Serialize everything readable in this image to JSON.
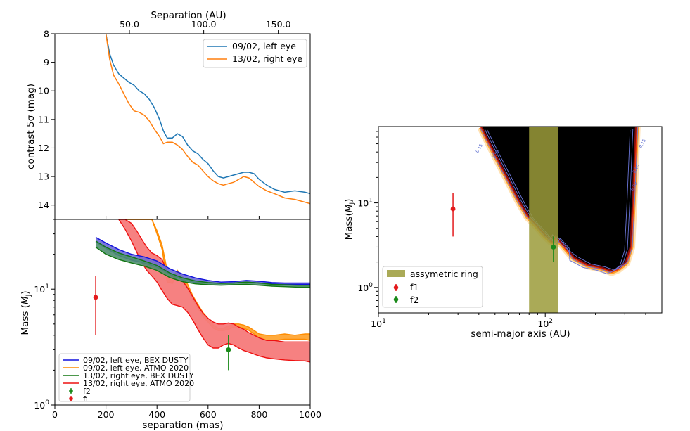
{
  "chart_data": [
    {
      "id": "contrast",
      "type": "line",
      "title": "",
      "xlabel_top": "Separation (AU)",
      "top_ticks": [
        "50.0",
        "100.0",
        "150.0"
      ],
      "top_tick_values_mas": [
        292,
        583,
        875
      ],
      "ylabel": "contrast 5σ (mag)",
      "xlim": [
        0,
        1000
      ],
      "ylim": [
        14.5,
        8.0
      ],
      "yticks": [
        "8",
        "9",
        "10",
        "11",
        "12",
        "13",
        "14"
      ],
      "ytick_values": [
        8,
        9,
        10,
        11,
        12,
        13,
        14
      ],
      "series": [
        {
          "name": "09/02, left eye",
          "color": "#1f77b4",
          "x": [
            200,
            215,
            230,
            250,
            270,
            290,
            310,
            330,
            350,
            370,
            390,
            410,
            425,
            440,
            460,
            480,
            500,
            520,
            540,
            560,
            580,
            600,
            620,
            640,
            660,
            680,
            700,
            720,
            740,
            760,
            780,
            800,
            830,
            860,
            900,
            940,
            980,
            1000
          ],
          "y": [
            8.0,
            8.7,
            9.1,
            9.4,
            9.55,
            9.7,
            9.8,
            10.0,
            10.1,
            10.3,
            10.6,
            11.0,
            11.4,
            11.65,
            11.65,
            11.5,
            11.6,
            11.9,
            12.1,
            12.2,
            12.4,
            12.55,
            12.8,
            13.0,
            13.05,
            13.0,
            12.95,
            12.9,
            12.85,
            12.85,
            12.9,
            13.1,
            13.3,
            13.45,
            13.55,
            13.5,
            13.55,
            13.6
          ]
        },
        {
          "name": "13/02, right eye",
          "color": "#ff7f0e",
          "x": [
            200,
            215,
            230,
            250,
            270,
            290,
            310,
            330,
            350,
            370,
            390,
            410,
            425,
            440,
            460,
            480,
            500,
            520,
            540,
            560,
            580,
            600,
            620,
            640,
            660,
            680,
            700,
            720,
            740,
            760,
            780,
            800,
            830,
            860,
            900,
            940,
            980,
            1000
          ],
          "y": [
            8.0,
            8.9,
            9.45,
            9.75,
            10.1,
            10.45,
            10.7,
            10.75,
            10.85,
            11.05,
            11.35,
            11.6,
            11.85,
            11.8,
            11.8,
            11.9,
            12.05,
            12.3,
            12.5,
            12.6,
            12.8,
            13.0,
            13.15,
            13.25,
            13.3,
            13.25,
            13.2,
            13.1,
            13.0,
            13.05,
            13.2,
            13.35,
            13.5,
            13.6,
            13.75,
            13.8,
            13.9,
            13.95
          ]
        }
      ],
      "legend_position": "upper right"
    },
    {
      "id": "mass-limits",
      "type": "area",
      "xlabel": "separation (mas)",
      "ylabel": "Mass (M_J)",
      "xlim": [
        0,
        1000
      ],
      "ylim": [
        1,
        40
      ],
      "yscale": "log",
      "xticks": [
        "0",
        "200",
        "400",
        "600",
        "800",
        "1000"
      ],
      "xtick_values": [
        0,
        200,
        400,
        600,
        800,
        1000
      ],
      "yticks": [
        "10^0",
        "10^1"
      ],
      "ytick_values": [
        1,
        10
      ],
      "bands": [
        {
          "name": "09/02, left eye, ATMO 2020",
          "edge_color": "#ff8c00",
          "fill_color": "#ffa533",
          "x": [
            275,
            300,
            320,
            340,
            360,
            380,
            400,
            420,
            440,
            460,
            480,
            500,
            520,
            540,
            560,
            580,
            600,
            620,
            640,
            660,
            680,
            700,
            720,
            740,
            760,
            780,
            800,
            830,
            860,
            900,
            940,
            980,
            1000
          ],
          "upper": [
            40,
            40,
            40,
            40,
            40,
            40,
            32,
            24,
            14.5,
            12.5,
            14.5,
            12.8,
            11.0,
            8.8,
            7.4,
            6.3,
            5.6,
            4.9,
            4.6,
            4.6,
            4.8,
            5.0,
            5.0,
            4.9,
            4.7,
            4.4,
            4.1,
            4.0,
            4.0,
            4.1,
            4.0,
            4.1,
            4.1
          ],
          "lower": [
            40,
            40,
            40,
            40,
            40,
            40,
            30,
            22,
            11.5,
            11.2,
            13.5,
            12.0,
            10.0,
            8.2,
            6.9,
            5.8,
            5.2,
            4.6,
            4.4,
            4.4,
            4.5,
            4.7,
            4.7,
            4.6,
            4.4,
            4.1,
            3.8,
            3.6,
            3.6,
            3.7,
            3.7,
            3.7,
            3.6
          ]
        },
        {
          "name": "13/02, right eye, ATMO 2020",
          "edge_color": "#ee1111",
          "fill_color": "#f57a7a",
          "x": [
            250,
            275,
            300,
            320,
            340,
            360,
            380,
            400,
            420,
            440,
            460,
            480,
            500,
            520,
            540,
            560,
            580,
            600,
            620,
            640,
            660,
            680,
            700,
            720,
            740,
            760,
            780,
            800,
            830,
            860,
            900,
            940,
            980,
            1000
          ],
          "upper": [
            40,
            40,
            37,
            32,
            27,
            23,
            20.5,
            19.5,
            18.0,
            14.0,
            13.0,
            12.0,
            11.8,
            10.2,
            8.6,
            7.2,
            6.2,
            5.6,
            5.2,
            5.0,
            5.0,
            5.1,
            5.0,
            4.7,
            4.5,
            4.2,
            4.0,
            3.8,
            3.6,
            3.6,
            3.5,
            3.5,
            3.5,
            3.5
          ],
          "lower": [
            40,
            33,
            26,
            21,
            17,
            14.5,
            13.0,
            11.5,
            9.7,
            8.3,
            7.4,
            7.2,
            7.0,
            6.3,
            5.4,
            4.5,
            3.8,
            3.3,
            3.1,
            3.1,
            3.3,
            3.4,
            3.3,
            3.1,
            2.95,
            2.85,
            2.75,
            2.65,
            2.55,
            2.5,
            2.45,
            2.42,
            2.4,
            2.35
          ]
        },
        {
          "name": "09/02, left eye, BEX DUSTY",
          "edge_color": "#1111dd",
          "fill_color": "#6b6bd6",
          "x": [
            160,
            200,
            250,
            300,
            350,
            400,
            450,
            500,
            550,
            600,
            650,
            700,
            750,
            800,
            850,
            900,
            950,
            1000
          ],
          "upper": [
            28.0,
            25.0,
            22.0,
            20.0,
            19.0,
            17.5,
            15.0,
            13.5,
            12.5,
            11.9,
            11.5,
            11.6,
            11.9,
            11.7,
            11.4,
            11.3,
            11.3,
            11.3
          ],
          "lower": [
            25.5,
            22.5,
            19.5,
            17.8,
            16.8,
            15.5,
            13.5,
            12.0,
            11.4,
            11.3,
            11.2,
            11.3,
            11.5,
            11.3,
            11.1,
            11.0,
            11.0,
            11.0
          ]
        },
        {
          "name": "13/02, right eye, BEX DUSTY",
          "edge_color": "#117711",
          "fill_color": "#4f8f6f",
          "x": [
            160,
            200,
            250,
            300,
            350,
            400,
            450,
            500,
            550,
            600,
            650,
            700,
            750,
            800,
            850,
            900,
            950,
            1000
          ],
          "upper": [
            26.0,
            23.0,
            20.5,
            19.0,
            17.5,
            16.0,
            13.8,
            12.5,
            11.8,
            11.4,
            11.2,
            11.3,
            11.5,
            11.3,
            11.0,
            10.9,
            10.8,
            10.8
          ],
          "lower": [
            23.0,
            20.0,
            18.0,
            16.8,
            15.8,
            14.5,
            12.6,
            11.6,
            11.1,
            10.9,
            10.8,
            10.9,
            11.0,
            10.8,
            10.6,
            10.5,
            10.4,
            10.4
          ]
        }
      ],
      "points": [
        {
          "name": "f2",
          "x": 680,
          "y": 3.0,
          "yerr_low": 2.0,
          "yerr_high": 4.0,
          "color": "#1a8a1a"
        },
        {
          "name": "fi",
          "x": 160,
          "y": 8.5,
          "yerr_low": 4.0,
          "yerr_high": 13.0,
          "color": "#e31a1c"
        }
      ],
      "legend": [
        {
          "label": "09/02, left eye, BEX DUSTY",
          "color": "#1111dd",
          "kind": "line"
        },
        {
          "label": "09/02, left eye, ATMO 2020",
          "color": "#ff8c00",
          "kind": "line"
        },
        {
          "label": "13/02, right eye, BEX DUSTY",
          "color": "#117711",
          "kind": "line"
        },
        {
          "label": "13/02, right eye, ATMO 2020",
          "color": "#ee1111",
          "kind": "line"
        },
        {
          "label": "f2",
          "color": "#1a8a1a",
          "kind": "point"
        },
        {
          "label": "fi",
          "color": "#e31a1c",
          "kind": "point"
        }
      ],
      "legend_position": "lower left"
    },
    {
      "id": "detection-map",
      "type": "heatmap",
      "xlabel": "semi-major axis (AU)",
      "ylabel": "Mass(M_J)",
      "xscale": "log",
      "yscale": "log",
      "xlim": [
        10,
        500
      ],
      "ylim": [
        0.5,
        80
      ],
      "xticks": [
        "10^1",
        "10^2"
      ],
      "xtick_values": [
        10,
        100
      ],
      "yticks": [
        "10^0",
        "10^1"
      ],
      "ytick_values": [
        1,
        10
      ],
      "ring": {
        "label": "assymetric ring",
        "x_range": [
          80,
          120
        ],
        "color": "#9b9b3a"
      },
      "contour_labels": [
        "0.15",
        "0.50",
        "0.90",
        "0.15",
        "0.90"
      ],
      "detection_boundary_x": [
        42,
        50,
        60,
        70,
        80,
        90,
        100,
        110,
        115,
        130,
        150,
        180,
        220,
        250,
        270,
        300,
        320,
        330,
        340,
        345
      ],
      "detection_boundary_y": [
        80,
        40,
        20,
        11,
        7,
        5.5,
        4.3,
        3.6,
        4.2,
        3.2,
        2.3,
        1.9,
        1.75,
        1.6,
        1.7,
        2.0,
        3.0,
        10,
        40,
        80
      ],
      "points": [
        {
          "name": "f1",
          "x": 28,
          "y": 8.5,
          "yerr_low": 4.0,
          "yerr_high": 13.0,
          "color": "#e31a1c"
        },
        {
          "name": "f2",
          "x": 112,
          "y": 3.0,
          "yerr_low": 2.0,
          "yerr_high": 4.0,
          "color": "#1a8a1a"
        }
      ],
      "legend": [
        {
          "label": "assymetric ring",
          "color": "#9b9b3a",
          "kind": "patch"
        },
        {
          "label": "f1",
          "color": "#e31a1c",
          "kind": "point"
        },
        {
          "label": "f2",
          "color": "#1a8a1a",
          "kind": "point"
        }
      ],
      "legend_position": "lower left"
    }
  ]
}
